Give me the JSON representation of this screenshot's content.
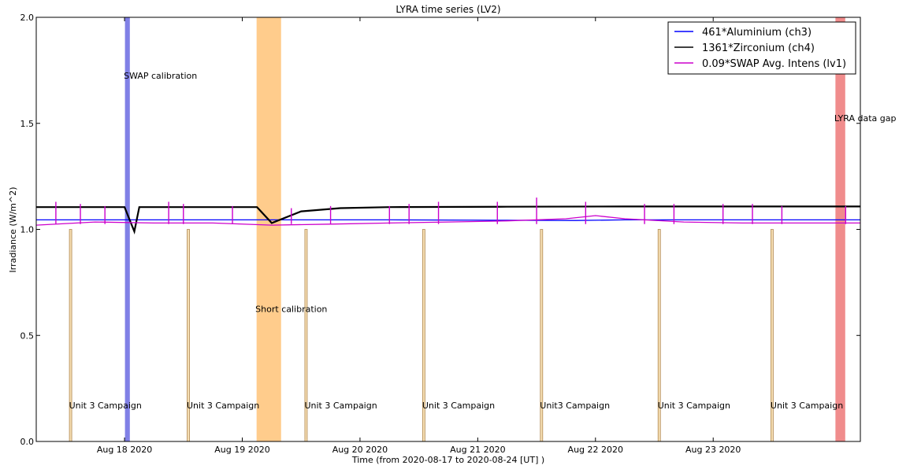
{
  "chart_data": {
    "type": "line",
    "title": "LYRA time series (LV2)",
    "xlabel": "Time (from 2020-08-17 to 2020-08-24 [UT] )",
    "ylabel": "Irradiance (W/m^2)",
    "xlim": [
      "2020-08-17 06:00",
      "2020-08-24 06:00"
    ],
    "ylim": [
      0.0,
      2.0
    ],
    "x_ticks": [
      {
        "x": "2020-08-18",
        "label": "Aug 18 2020"
      },
      {
        "x": "2020-08-19",
        "label": "Aug 19 2020"
      },
      {
        "x": "2020-08-20",
        "label": "Aug 20 2020"
      },
      {
        "x": "2020-08-21",
        "label": "Aug 21 2020"
      },
      {
        "x": "2020-08-22",
        "label": "Aug 22 2020"
      },
      {
        "x": "2020-08-23",
        "label": "Aug 23 2020"
      }
    ],
    "y_ticks": [
      0.0,
      0.5,
      1.0,
      1.5,
      2.0
    ],
    "y_tick_labels": [
      "0.0",
      "0.5",
      "1.0",
      "1.5",
      "2.0"
    ],
    "grid": false,
    "legend_position": "top-right",
    "series": [
      {
        "name": "461*Aluminium (ch3)",
        "color": "#0000ff",
        "x": [
          "2020-08-17 06:00",
          "2020-08-19 03:00",
          "2020-08-19 06:00",
          "2020-08-20 06:00",
          "2020-08-21 06:00",
          "2020-08-21 20:00",
          "2020-08-22 06:00",
          "2020-08-23 06:00",
          "2020-08-24 06:00"
        ],
        "y": [
          1.045,
          1.045,
          1.045,
          1.045,
          1.043,
          1.042,
          1.045,
          1.045,
          1.045
        ]
      },
      {
        "name": "1361*Zirconium (ch4)",
        "color": "#000000",
        "x": [
          "2020-08-17 06:00",
          "2020-08-18 00:00",
          "2020-08-18 02:00",
          "2020-08-18 03:00",
          "2020-08-19 03:00",
          "2020-08-19 06:00",
          "2020-08-19 12:00",
          "2020-08-19 20:00",
          "2020-08-20 06:00",
          "2020-08-21 06:00",
          "2020-08-22 06:00",
          "2020-08-23 06:00",
          "2020-08-24 06:00"
        ],
        "y": [
          1.105,
          1.105,
          0.99,
          1.105,
          1.105,
          1.03,
          1.085,
          1.1,
          1.105,
          1.107,
          1.108,
          1.108,
          1.108
        ]
      },
      {
        "name": "0.09*SWAP Avg. Intens (lv1)",
        "color": "#cc00cc",
        "x": [
          "2020-08-17 06:00",
          "2020-08-17 18:00",
          "2020-08-18 06:00",
          "2020-08-18 18:00",
          "2020-08-19 06:00",
          "2020-08-19 18:00",
          "2020-08-20 06:00",
          "2020-08-20 18:00",
          "2020-08-21 06:00",
          "2020-08-21 18:00",
          "2020-08-22 00:00",
          "2020-08-22 06:00",
          "2020-08-22 18:00",
          "2020-08-23 06:00",
          "2020-08-23 18:00",
          "2020-08-24 06:00"
        ],
        "y": [
          1.02,
          1.035,
          1.03,
          1.03,
          1.02,
          1.025,
          1.03,
          1.035,
          1.04,
          1.05,
          1.065,
          1.05,
          1.035,
          1.03,
          1.03,
          1.03
        ],
        "spikes": [
          {
            "x": "2020-08-17 10:00",
            "y": 1.13
          },
          {
            "x": "2020-08-17 15:00",
            "y": 1.12
          },
          {
            "x": "2020-08-17 20:00",
            "y": 1.11
          },
          {
            "x": "2020-08-18 09:00",
            "y": 1.13
          },
          {
            "x": "2020-08-18 12:00",
            "y": 1.12
          },
          {
            "x": "2020-08-18 22:00",
            "y": 1.11
          },
          {
            "x": "2020-08-19 10:00",
            "y": 1.1
          },
          {
            "x": "2020-08-19 18:00",
            "y": 1.11
          },
          {
            "x": "2020-08-20 06:00",
            "y": 1.11
          },
          {
            "x": "2020-08-20 10:00",
            "y": 1.12
          },
          {
            "x": "2020-08-20 16:00",
            "y": 1.13
          },
          {
            "x": "2020-08-21 04:00",
            "y": 1.13
          },
          {
            "x": "2020-08-21 12:00",
            "y": 1.15
          },
          {
            "x": "2020-08-21 22:00",
            "y": 1.13
          },
          {
            "x": "2020-08-22 10:00",
            "y": 1.12
          },
          {
            "x": "2020-08-22 16:00",
            "y": 1.12
          },
          {
            "x": "2020-08-23 02:00",
            "y": 1.12
          },
          {
            "x": "2020-08-23 08:00",
            "y": 1.12
          },
          {
            "x": "2020-08-23 14:00",
            "y": 1.11
          },
          {
            "x": "2020-08-24 03:00",
            "y": 1.11
          }
        ]
      }
    ],
    "bands": [
      {
        "label": "SWAP calibration",
        "x0": "2020-08-18 00:10",
        "x1": "2020-08-18 01:00",
        "color": "#8080e6",
        "label_y": 1.71
      },
      {
        "label": "Short calibration",
        "x0": "2020-08-19 03:00",
        "x1": "2020-08-19 07:50",
        "color": "#ffcc8c",
        "label_y": 0.61
      },
      {
        "label": "LYRA data gap",
        "x0": "2020-08-24 01:00",
        "x1": "2020-08-24 02:50",
        "color": "#f08c8c",
        "label_y": 1.51
      }
    ],
    "campaigns": [
      {
        "label": "Unit 3 Campaign",
        "x": "2020-08-17 13:00",
        "height": 1.0
      },
      {
        "label": "Unit 3 Campaign",
        "x": "2020-08-18 13:00",
        "height": 1.0
      },
      {
        "label": "Unit 3 Campaign",
        "x": "2020-08-19 13:00",
        "height": 1.0
      },
      {
        "label": "Unit 3 Campaign",
        "x": "2020-08-20 13:00",
        "height": 1.0
      },
      {
        "label": "Unit3 Campaign",
        "x": "2020-08-21 13:00",
        "height": 1.0
      },
      {
        "label": "Unit 3 Campaign",
        "x": "2020-08-22 13:00",
        "height": 1.0
      },
      {
        "label": "Unit 3 Campaign",
        "x": "2020-08-23 12:00",
        "height": 1.0
      }
    ],
    "campaign_label_y": 0.17
  }
}
